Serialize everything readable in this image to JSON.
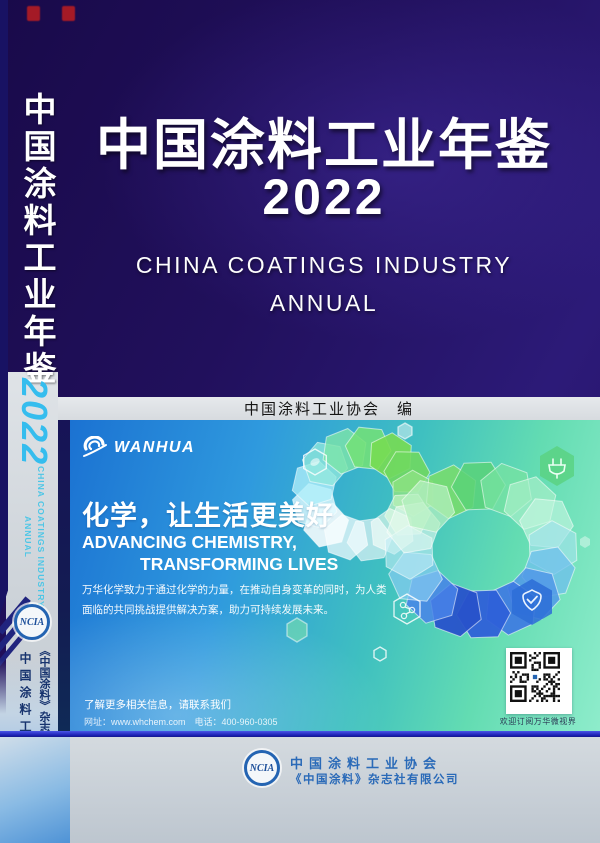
{
  "spine": {
    "title": "中国涂料工业年鉴",
    "year": "2022",
    "subtitle_en_line1": "CHINA COATINGS INDUSTRY",
    "subtitle_en_line2": "ANNUAL",
    "logo_text": "NCIA",
    "org": "中国涂料工业协会",
    "publisher": "《中国涂料》杂志社有限公司"
  },
  "cover": {
    "title": "中国涂料工业年鉴",
    "year": "2022",
    "subtitle_line1": "CHINA COATINGS INDUSTRY",
    "subtitle_line2": "ANNUAL",
    "editor": "中国涂料工业协会　编"
  },
  "ad": {
    "brand": "WANHUA",
    "slogan_cn": "化学，让生活更美好",
    "slogan_en_line1": "ADVANCING CHEMISTRY,",
    "slogan_en_line2": "TRANSFORMING LIVES",
    "body_line1": "万华化学致力于通过化学的力量，在推动自身变革的同时，为人类",
    "body_line2": "面临的共同挑战提供解决方案，助力可持续发展未来。",
    "contact_line1": "了解更多相关信息，请联系我们",
    "contact_line2": "网址：www.whchem.com　电话：400-960-0305",
    "qr_caption": "欢迎订阅万华微视界"
  },
  "footer": {
    "logo_text": "NCIA",
    "org": "中国涂料工业协会",
    "publisher": "《中国涂料》杂志社有限公司"
  },
  "colors": {
    "cover_background": "#22105e",
    "spine_year_cyan": "#35bdee",
    "ad_gradient_blue": "#1b72d2",
    "ad_gradient_green": "#63dcb2",
    "separator_blue": "#2230d8",
    "footer_text_blue": "#2a6ab8",
    "ncia_logo_blue": "#2464b2"
  }
}
